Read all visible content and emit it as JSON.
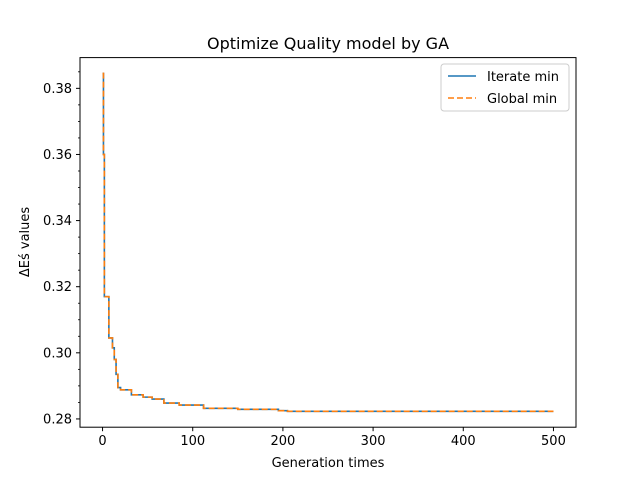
{
  "chart_data": {
    "type": "line",
    "title": "Optimize Quality model by GA",
    "xlabel": "Generation times",
    "ylabel": "ΔEś values",
    "xlim": [
      -25,
      525
    ],
    "ylim": [
      0.2775,
      0.3893
    ],
    "xticks": [
      0,
      100,
      200,
      300,
      400,
      500
    ],
    "yticks": [
      0.28,
      0.3,
      0.32,
      0.34,
      0.36,
      0.38
    ],
    "ytick_labels": [
      "0.28",
      "0.30",
      "0.32",
      "0.34",
      "0.36",
      "0.38"
    ],
    "grid": false,
    "legend_position": "top-right",
    "series": [
      {
        "name": "Iterate min",
        "color": "#1f77b4",
        "style": "solid",
        "x": [
          0,
          1,
          1,
          2,
          2,
          4,
          4,
          7,
          7,
          11,
          11,
          13,
          13,
          15,
          15,
          17,
          17,
          20,
          20,
          32,
          32,
          45,
          45,
          55,
          55,
          68,
          68,
          85,
          85,
          112,
          112,
          150,
          150,
          195,
          195,
          205,
          205,
          500
        ],
        "y": [
          0.3845,
          0.3845,
          0.36,
          0.36,
          0.317,
          0.317,
          0.317,
          0.317,
          0.3045,
          0.3045,
          0.3015,
          0.3015,
          0.298,
          0.298,
          0.2935,
          0.2935,
          0.2895,
          0.2895,
          0.2888,
          0.2888,
          0.2873,
          0.2873,
          0.2866,
          0.2866,
          0.286,
          0.286,
          0.2848,
          0.2848,
          0.2842,
          0.2842,
          0.2832,
          0.2832,
          0.2829,
          0.2829,
          0.2825,
          0.2825,
          0.2823,
          0.2823
        ]
      },
      {
        "name": "Global min",
        "color": "#ff7f0e",
        "style": "dashed",
        "x": [
          0,
          1,
          1,
          2,
          2,
          4,
          4,
          7,
          7,
          11,
          11,
          13,
          13,
          15,
          15,
          17,
          17,
          20,
          20,
          32,
          32,
          45,
          45,
          55,
          55,
          68,
          68,
          85,
          85,
          112,
          112,
          150,
          150,
          195,
          195,
          205,
          205,
          500
        ],
        "y": [
          0.3845,
          0.3845,
          0.36,
          0.36,
          0.317,
          0.317,
          0.317,
          0.317,
          0.3045,
          0.3045,
          0.3015,
          0.3015,
          0.298,
          0.298,
          0.2935,
          0.2935,
          0.2895,
          0.2895,
          0.2888,
          0.2888,
          0.2873,
          0.2873,
          0.2866,
          0.2866,
          0.286,
          0.286,
          0.2848,
          0.2848,
          0.2842,
          0.2842,
          0.2832,
          0.2832,
          0.2829,
          0.2829,
          0.2825,
          0.2825,
          0.2823,
          0.2823
        ]
      }
    ]
  }
}
